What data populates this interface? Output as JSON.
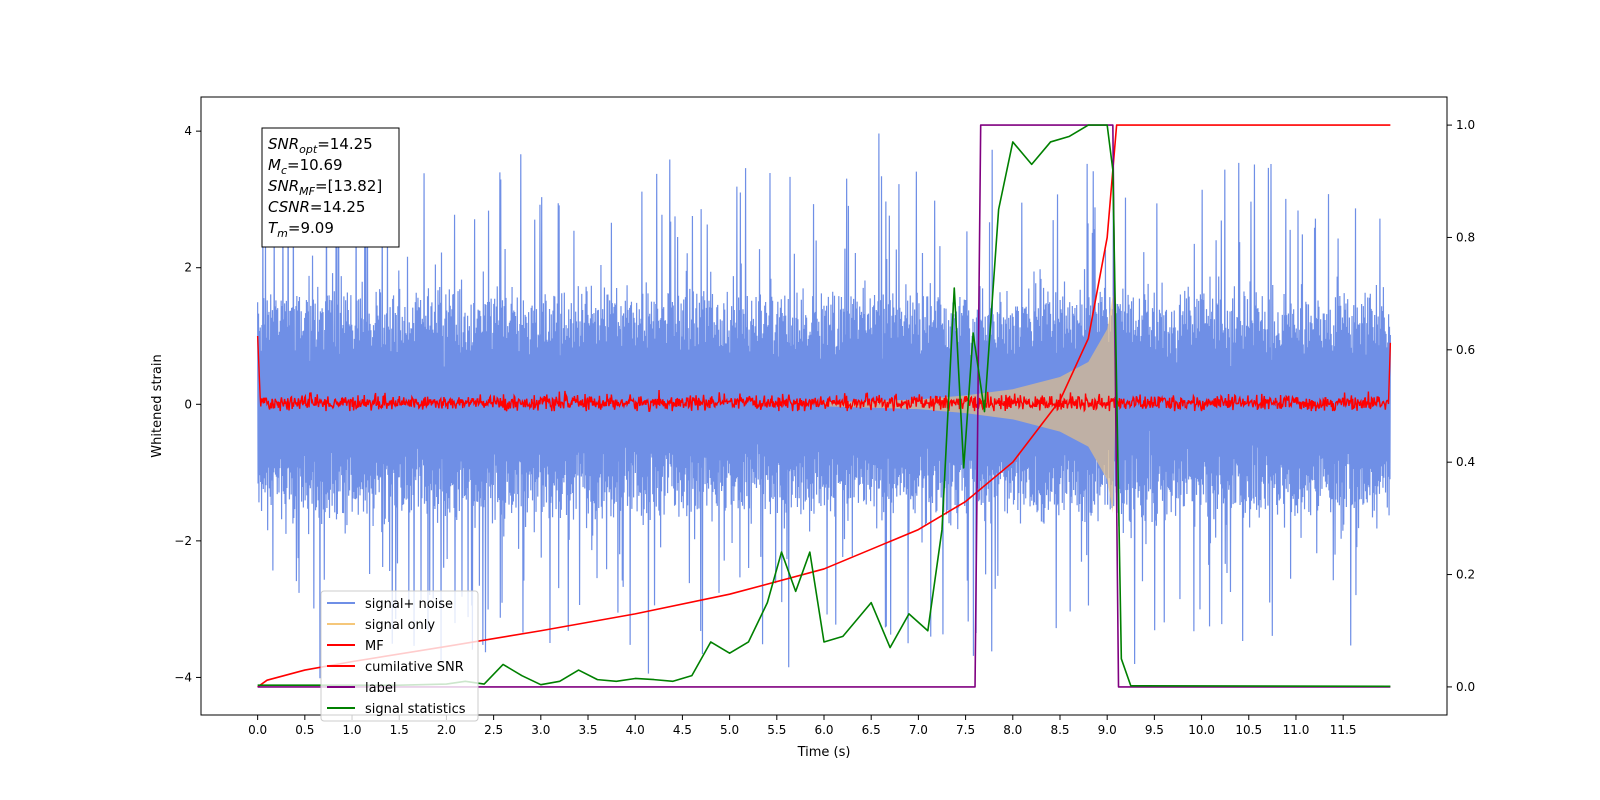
{
  "chart_data": {
    "type": "line",
    "xlabel": "Time (s)",
    "ylabel": "Whitened strain",
    "xlim": [
      -0.6,
      12.6
    ],
    "ylim": [
      -4.55,
      4.5
    ],
    "y2lim": [
      -0.05,
      1.05
    ],
    "xticks": [
      0.0,
      0.5,
      1.0,
      1.5,
      2.0,
      2.5,
      3.0,
      3.5,
      4.0,
      4.5,
      5.0,
      5.5,
      6.0,
      6.5,
      7.0,
      7.5,
      8.0,
      8.5,
      9.0,
      9.5,
      10.0,
      10.5,
      11.0,
      11.5
    ],
    "xtick_labels": [
      "0.0",
      "0.5",
      "1.0",
      "1.5",
      "2.0",
      "2.5",
      "3.0",
      "3.5",
      "4.0",
      "4.5",
      "5.0",
      "5.5",
      "6.0",
      "6.5",
      "7.0",
      "7.5",
      "8.0",
      "8.5",
      "9.0",
      "9.5",
      "10.0",
      "10.5",
      "11.0",
      "11.5"
    ],
    "yticks": [
      -4,
      -2,
      0,
      2,
      4
    ],
    "ytick_labels": [
      "−4",
      "−2",
      "0",
      "2",
      "4"
    ],
    "y2ticks": [
      0.0,
      0.2,
      0.4,
      0.6,
      0.8,
      1.0
    ],
    "y2tick_labels": [
      "0.0",
      "0.2",
      "0.4",
      "0.6",
      "0.8",
      "1.0"
    ],
    "grid": false,
    "legend_position": "lower-left",
    "series": [
      {
        "name": "signal+ noise",
        "color": "#6f8fe6",
        "axis": "left",
        "x_range": [
          0.0,
          12.0
        ],
        "envelope_typical": 1.6,
        "envelope_peak": 4.0
      },
      {
        "name": "signal only",
        "color": "#f5c77a",
        "axis": "left",
        "chirp_amplitude": [
          [
            6.0,
            0.03
          ],
          [
            7.0,
            0.07
          ],
          [
            7.5,
            0.13
          ],
          [
            8.0,
            0.22
          ],
          [
            8.5,
            0.4
          ],
          [
            8.8,
            0.62
          ],
          [
            9.0,
            1.1
          ],
          [
            9.06,
            1.6
          ],
          [
            9.09,
            0.0
          ]
        ]
      },
      {
        "name": "MF",
        "color": "#ff0000",
        "axis": "left",
        "baseline_range": [
          -0.1,
          0.25
        ],
        "endpoints": [
          1.0,
          0.9
        ]
      },
      {
        "name": "cumilative SNR",
        "color": "#ff0000",
        "axis": "right",
        "points": [
          [
            0.0,
            0.0
          ],
          [
            0.1,
            0.012
          ],
          [
            0.5,
            0.03
          ],
          [
            1.0,
            0.045
          ],
          [
            2.0,
            0.072
          ],
          [
            3.0,
            0.1
          ],
          [
            4.0,
            0.13
          ],
          [
            5.0,
            0.165
          ],
          [
            6.0,
            0.21
          ],
          [
            7.0,
            0.28
          ],
          [
            7.5,
            0.33
          ],
          [
            8.0,
            0.4
          ],
          [
            8.5,
            0.51
          ],
          [
            8.8,
            0.62
          ],
          [
            9.0,
            0.8
          ],
          [
            9.08,
            0.96
          ],
          [
            9.1,
            1.0
          ],
          [
            12.0,
            1.0
          ]
        ]
      },
      {
        "name": "label",
        "color": "#800080",
        "axis": "right",
        "points": [
          [
            0.0,
            0.0
          ],
          [
            7.6,
            0.0
          ],
          [
            7.66,
            1.0
          ],
          [
            9.06,
            1.0
          ],
          [
            9.12,
            0.0
          ],
          [
            12.0,
            0.0
          ]
        ]
      },
      {
        "name": "signal statistics",
        "color": "#008000",
        "axis": "right",
        "points": [
          [
            0.0,
            0.003
          ],
          [
            0.5,
            0.003
          ],
          [
            1.0,
            0.003
          ],
          [
            1.5,
            0.003
          ],
          [
            2.0,
            0.005
          ],
          [
            2.2,
            0.01
          ],
          [
            2.4,
            0.005
          ],
          [
            2.6,
            0.04
          ],
          [
            2.8,
            0.02
          ],
          [
            3.0,
            0.004
          ],
          [
            3.2,
            0.01
          ],
          [
            3.4,
            0.03
          ],
          [
            3.6,
            0.013
          ],
          [
            3.8,
            0.01
          ],
          [
            4.0,
            0.015
          ],
          [
            4.2,
            0.013
          ],
          [
            4.4,
            0.01
          ],
          [
            4.6,
            0.02
          ],
          [
            4.8,
            0.08
          ],
          [
            5.0,
            0.06
          ],
          [
            5.2,
            0.08
          ],
          [
            5.4,
            0.15
          ],
          [
            5.55,
            0.24
          ],
          [
            5.7,
            0.17
          ],
          [
            5.85,
            0.24
          ],
          [
            6.0,
            0.08
          ],
          [
            6.2,
            0.09
          ],
          [
            6.5,
            0.15
          ],
          [
            6.7,
            0.07
          ],
          [
            6.9,
            0.13
          ],
          [
            7.1,
            0.1
          ],
          [
            7.25,
            0.28
          ],
          [
            7.38,
            0.71
          ],
          [
            7.48,
            0.39
          ],
          [
            7.58,
            0.63
          ],
          [
            7.7,
            0.49
          ],
          [
            7.85,
            0.85
          ],
          [
            8.0,
            0.97
          ],
          [
            8.2,
            0.93
          ],
          [
            8.4,
            0.97
          ],
          [
            8.6,
            0.98
          ],
          [
            8.8,
            1.0
          ],
          [
            9.0,
            1.0
          ],
          [
            9.06,
            0.92
          ],
          [
            9.15,
            0.05
          ],
          [
            9.25,
            0.002
          ],
          [
            12.0,
            0.001
          ]
        ]
      }
    ]
  },
  "annotation": {
    "lines": [
      {
        "main": "SNR",
        "sub": "opt",
        "value": "=14.25"
      },
      {
        "main": "M",
        "sub": "c",
        "value": "=10.69"
      },
      {
        "main": "SNR",
        "sub": "MF",
        "value": "=[13.82]"
      },
      {
        "main": "CSNR",
        "sub": "",
        "value": "=14.25"
      },
      {
        "main": "T",
        "sub": "m",
        "value": "=9.09"
      }
    ]
  }
}
